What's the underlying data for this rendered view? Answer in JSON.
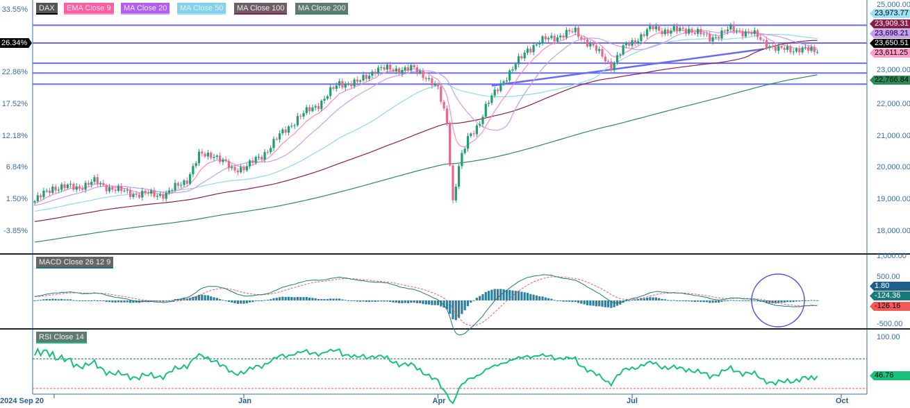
{
  "chart_data": [
    {
      "type": "candlestick",
      "title": "DAX",
      "legend": [
        {
          "name": "DAX",
          "color": "#555555",
          "line": "#000000"
        },
        {
          "name": "EMA Close 9",
          "color": "#ff5fa2",
          "line": "#ff8cc0"
        },
        {
          "name": "MA Close 20",
          "color": "#b060f0",
          "line": "#c99cf5"
        },
        {
          "name": "MA Close 50",
          "color": "#7fd3ee",
          "line": "#9ee0f5"
        },
        {
          "name": "MA Close 100",
          "color": "#6e5d66",
          "line": "#8b1e4b"
        },
        {
          "name": "MA Close 200",
          "color": "#5f7a6e",
          "line": "#2e8b57"
        }
      ],
      "x_ticks": [
        {
          "index": 6.5,
          "label": "2024 Sep 20"
        },
        {
          "index": 70,
          "label": "Jan"
        },
        {
          "index": 135,
          "label": "Apr"
        },
        {
          "index": 200,
          "label": "Jul"
        },
        {
          "index": 270,
          "label": "Oct"
        }
      ],
      "y_ticks_right": [
        "25,000.00",
        "23,000.00",
        "22,000.00",
        "21,000.00",
        "20,000.00",
        "19,000.00",
        "18,000.00"
      ],
      "y_ticks_left": [
        "33.55%",
        "22.86%",
        "17.52%",
        "12.18%",
        "6.84%",
        "1.50%",
        "-3.85%"
      ],
      "left_current_pct": "26.34%",
      "horizontal_levels": [
        24460,
        23900,
        23260,
        22950,
        22600
      ],
      "trendline": [
        [
          153,
          22550
        ],
        [
          244,
          23710
        ]
      ],
      "close_keypoints": [
        [
          0,
          18900
        ],
        [
          6,
          19340
        ],
        [
          14,
          19340
        ],
        [
          20,
          19510
        ],
        [
          28,
          19230
        ],
        [
          35,
          19120
        ],
        [
          44,
          19120
        ],
        [
          51,
          19600
        ],
        [
          55,
          20330
        ],
        [
          60,
          20390
        ],
        [
          66,
          19890
        ],
        [
          71,
          20000
        ],
        [
          76,
          20330
        ],
        [
          81,
          20870
        ],
        [
          88,
          21530
        ],
        [
          95,
          21970
        ],
        [
          102,
          22630
        ],
        [
          108,
          22630
        ],
        [
          114,
          23070
        ],
        [
          123,
          23070
        ],
        [
          127,
          23070
        ],
        [
          131,
          22850
        ],
        [
          135,
          22410
        ],
        [
          138,
          21420
        ],
        [
          140,
          18900
        ],
        [
          142,
          20000
        ],
        [
          145,
          20870
        ],
        [
          149,
          21420
        ],
        [
          151,
          21860
        ],
        [
          156,
          22630
        ],
        [
          160,
          23070
        ],
        [
          165,
          23720
        ],
        [
          172,
          24050
        ],
        [
          177,
          24160
        ],
        [
          181,
          24270
        ],
        [
          186,
          23830
        ],
        [
          191,
          23400
        ],
        [
          193,
          23180
        ],
        [
          198,
          23830
        ],
        [
          202,
          24050
        ],
        [
          207,
          24380
        ],
        [
          212,
          24270
        ],
        [
          219,
          24340
        ],
        [
          226,
          24050
        ],
        [
          233,
          24340
        ],
        [
          240,
          24210
        ],
        [
          244,
          23940
        ],
        [
          249,
          23680
        ],
        [
          256,
          23720
        ],
        [
          262,
          23611
        ]
      ],
      "price_labels": [
        {
          "value": "23,973.77",
          "bg": "#9ee0f5",
          "fg": "#000"
        },
        {
          "value": "23,909.31",
          "bg": "#8b1e4b",
          "fg": "#fff"
        },
        {
          "value": "23,698.21",
          "bg": "#c99cf5",
          "fg": "#000"
        },
        {
          "value": "23,650.51",
          "bg": "#000000",
          "fg": "#fff"
        },
        {
          "value": "23,611.25",
          "bg": "#ff9cc8",
          "fg": "#000"
        },
        {
          "value": "22,766.84",
          "bg": "#2e8b57",
          "fg": "#000"
        }
      ]
    },
    {
      "type": "macd",
      "title": "MACD Close 26 12 9",
      "y_ticks": [
        "1,000.00",
        "500.00",
        "-500.00"
      ],
      "values": [
        {
          "value": "1.80",
          "bg": "#1d5f8a",
          "fg": "#fff"
        },
        {
          "value": "-124.36",
          "bg": "#1a7a78",
          "fg": "#fff"
        },
        {
          "value": "-126.16",
          "bg": "#f25858",
          "fg": "#000"
        }
      ],
      "colors": {
        "macd": "#1a7a78",
        "signal": "#f25858",
        "histogram": "#2e7fa0"
      }
    },
    {
      "type": "rsi",
      "title": "RSI Close 14",
      "y_ticks": [
        "100.00"
      ],
      "levels": [
        70,
        30
      ],
      "current": "46.76",
      "color": "#19c07a"
    }
  ]
}
